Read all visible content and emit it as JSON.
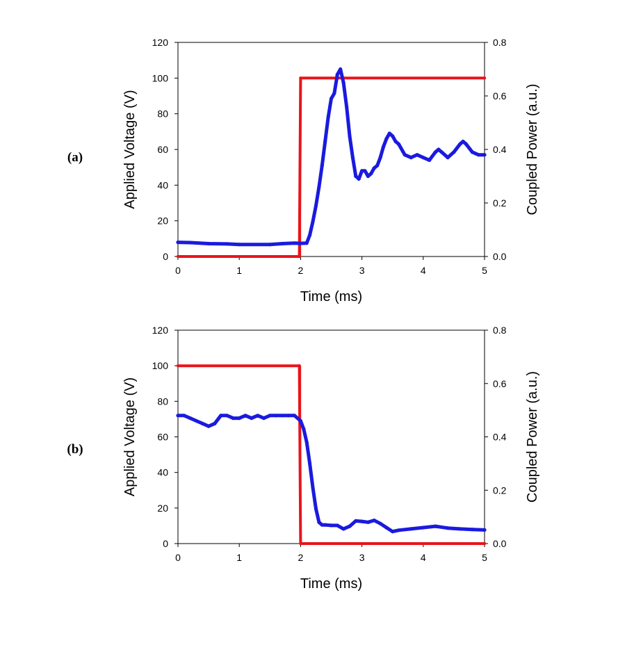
{
  "chart_data": [
    {
      "type": "line",
      "panel_label": "(a)",
      "xlabel": "Time (ms)",
      "ylabel": "Applied Voltage (V)",
      "y2label": "Coupled Power (a.u.)",
      "xlim": [
        0,
        5
      ],
      "ylim": [
        0,
        120
      ],
      "y2lim": [
        0,
        0.8
      ],
      "xticks": [
        "0",
        "1",
        "2",
        "3",
        "4",
        "5"
      ],
      "yticks": [
        "0",
        "20",
        "40",
        "60",
        "80",
        "100",
        "120"
      ],
      "y2ticks": [
        "0.0",
        "0.2",
        "0.4",
        "0.6",
        "0.8"
      ],
      "grid": false,
      "series": [
        {
          "axis": "left",
          "color": "#e8141b",
          "x": [
            0,
            1.98,
            2.0,
            5.0
          ],
          "values": [
            0,
            0,
            100,
            100
          ]
        },
        {
          "axis": "right",
          "color": "#1a1adf",
          "x": [
            0,
            0.2,
            0.5,
            0.8,
            1.0,
            1.5,
            1.7,
            1.9,
            2.0,
            2.1,
            2.15,
            2.2,
            2.25,
            2.3,
            2.35,
            2.4,
            2.45,
            2.5,
            2.55,
            2.6,
            2.65,
            2.7,
            2.75,
            2.8,
            2.85,
            2.9,
            2.95,
            3.0,
            3.05,
            3.1,
            3.15,
            3.2,
            3.25,
            3.3,
            3.35,
            3.4,
            3.45,
            3.5,
            3.55,
            3.6,
            3.7,
            3.8,
            3.9,
            4.0,
            4.1,
            4.2,
            4.25,
            4.3,
            4.4,
            4.5,
            4.6,
            4.65,
            4.7,
            4.8,
            4.9,
            5.0
          ],
          "values": [
            0.053,
            0.052,
            0.048,
            0.047,
            0.045,
            0.045,
            0.048,
            0.05,
            0.049,
            0.05,
            0.08,
            0.13,
            0.19,
            0.26,
            0.34,
            0.43,
            0.52,
            0.59,
            0.61,
            0.68,
            0.7,
            0.65,
            0.56,
            0.45,
            0.37,
            0.3,
            0.29,
            0.32,
            0.32,
            0.3,
            0.31,
            0.33,
            0.34,
            0.37,
            0.41,
            0.44,
            0.46,
            0.45,
            0.43,
            0.42,
            0.38,
            0.37,
            0.38,
            0.37,
            0.36,
            0.39,
            0.4,
            0.39,
            0.37,
            0.39,
            0.42,
            0.43,
            0.42,
            0.39,
            0.38,
            0.38
          ]
        }
      ]
    },
    {
      "type": "line",
      "panel_label": "(b)",
      "xlabel": "Time (ms)",
      "ylabel": "Applied Voltage (V)",
      "y2label": "Coupled Power (a.u.)",
      "xlim": [
        0,
        5
      ],
      "ylim": [
        0,
        120
      ],
      "y2lim": [
        0,
        0.8
      ],
      "xticks": [
        "0",
        "1",
        "2",
        "3",
        "4",
        "5"
      ],
      "yticks": [
        "0",
        "20",
        "40",
        "60",
        "80",
        "100",
        "120"
      ],
      "y2ticks": [
        "0.0",
        "0.2",
        "0.4",
        "0.6",
        "0.8"
      ],
      "grid": false,
      "series": [
        {
          "axis": "left",
          "color": "#e8141b",
          "x": [
            0,
            1.98,
            2.0,
            5.0
          ],
          "values": [
            100,
            100,
            0,
            0
          ]
        },
        {
          "axis": "right",
          "color": "#1a1adf",
          "x": [
            0,
            0.1,
            0.2,
            0.3,
            0.4,
            0.5,
            0.6,
            0.7,
            0.8,
            0.9,
            1.0,
            1.1,
            1.2,
            1.3,
            1.4,
            1.5,
            1.6,
            1.7,
            1.8,
            1.9,
            2.0,
            2.05,
            2.1,
            2.15,
            2.2,
            2.25,
            2.3,
            2.35,
            2.4,
            2.5,
            2.6,
            2.7,
            2.8,
            2.9,
            3.0,
            3.1,
            3.2,
            3.3,
            3.4,
            3.5,
            3.6,
            3.8,
            4.0,
            4.2,
            4.4,
            4.6,
            4.8,
            5.0
          ],
          "values": [
            0.48,
            0.48,
            0.47,
            0.46,
            0.45,
            0.44,
            0.45,
            0.48,
            0.48,
            0.47,
            0.47,
            0.48,
            0.47,
            0.48,
            0.47,
            0.48,
            0.48,
            0.48,
            0.48,
            0.48,
            0.46,
            0.43,
            0.38,
            0.3,
            0.21,
            0.13,
            0.08,
            0.07,
            0.07,
            0.068,
            0.068,
            0.055,
            0.065,
            0.085,
            0.083,
            0.08,
            0.087,
            0.075,
            0.06,
            0.045,
            0.05,
            0.055,
            0.06,
            0.065,
            0.058,
            0.055,
            0.053,
            0.051
          ]
        }
      ]
    }
  ]
}
